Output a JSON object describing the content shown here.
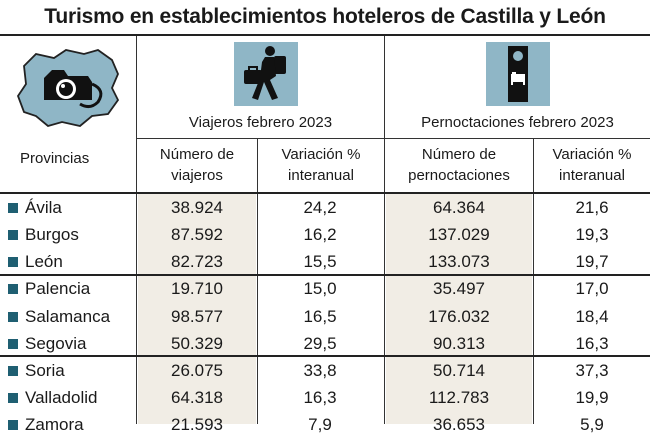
{
  "title": "Turismo en establecimientos hoteleros de Castilla y León",
  "colors": {
    "icon_bg": "#8fb6c6",
    "bullet": "#1f5f72",
    "shade": "#f1ede5"
  },
  "icons": {
    "map": "castilla-leon-map-camera-icon",
    "travelers": "traveler-with-suitcase-icon",
    "overnight": "door-hanger-bed-icon"
  },
  "groups": {
    "viajeros": "Viajeros febrero 2023",
    "pernoctaciones": "Pernoctaciones febrero 2023"
  },
  "columns": {
    "provincias": "Provincias",
    "num_viajeros": [
      "Número de",
      "viajeros"
    ],
    "var_viajeros": [
      "Variación %",
      "interanual"
    ],
    "num_pernoctaciones": [
      "Número de",
      "pernoctaciones"
    ],
    "var_pernoctaciones": [
      "Variación %",
      "interanual"
    ]
  },
  "chart_data": {
    "type": "table",
    "title": "Turismo en establecimientos hoteleros de Castilla y León",
    "columns": [
      "Provincias",
      "Número de viajeros",
      "Variación % interanual",
      "Número de pernoctaciones",
      "Variación % interanual"
    ],
    "rows": [
      {
        "provincia": "Ávila",
        "viajeros": "38.924",
        "var_viajeros": "24,2",
        "pernoctaciones": "64.364",
        "var_pernoctaciones": "21,6"
      },
      {
        "provincia": "Burgos",
        "viajeros": "87.592",
        "var_viajeros": "16,2",
        "pernoctaciones": "137.029",
        "var_pernoctaciones": "19,3"
      },
      {
        "provincia": "León",
        "viajeros": "82.723",
        "var_viajeros": "15,5",
        "pernoctaciones": "133.073",
        "var_pernoctaciones": "19,7"
      },
      {
        "provincia": "Palencia",
        "viajeros": "19.710",
        "var_viajeros": "15,0",
        "pernoctaciones": "35.497",
        "var_pernoctaciones": "17,0"
      },
      {
        "provincia": "Salamanca",
        "viajeros": "98.577",
        "var_viajeros": "16,5",
        "pernoctaciones": "176.032",
        "var_pernoctaciones": "18,4"
      },
      {
        "provincia": "Segovia",
        "viajeros": "50.329",
        "var_viajeros": "29,5",
        "pernoctaciones": "90.313",
        "var_pernoctaciones": "16,3"
      },
      {
        "provincia": "Soria",
        "viajeros": "26.075",
        "var_viajeros": "33,8",
        "pernoctaciones": "50.714",
        "var_pernoctaciones": "37,3"
      },
      {
        "provincia": "Valladolid",
        "viajeros": "64.318",
        "var_viajeros": "16,3",
        "pernoctaciones": "112.783",
        "var_pernoctaciones": "19,9"
      },
      {
        "provincia": "Zamora",
        "viajeros": "21.593",
        "var_viajeros": "7,9",
        "pernoctaciones": "36.653",
        "var_pernoctaciones": "5,9"
      }
    ]
  }
}
